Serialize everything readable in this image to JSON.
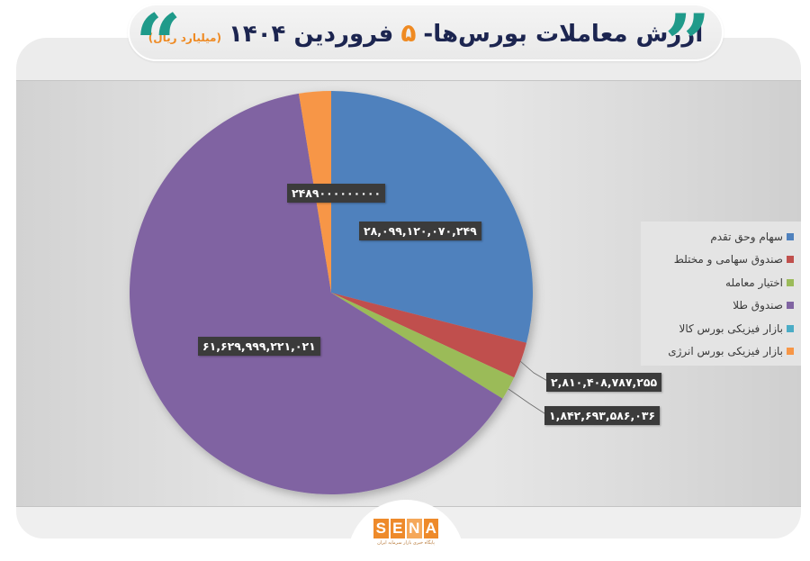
{
  "header": {
    "title_main": "ارزش معاملات بورس‌ها-",
    "title_day": "۵",
    "title_month_year": "فروردین ۱۴۰۴",
    "title_unit": "(میلیارد ریال)",
    "quote_open": "“",
    "quote_close": "”"
  },
  "footer": {
    "logo_letters": [
      "S",
      "E",
      "N",
      "A"
    ],
    "logo_tagline": "پایگاه خبری بازار سرمایه ایران"
  },
  "colors": {
    "title_text": "#1c2550",
    "accent_orange": "#ef8a22",
    "quote_teal": "#1f9a8a"
  },
  "chart_data": {
    "type": "pie",
    "title": "ارزش معاملات بورس‌ها- ۵ فروردین ۱۴۰۴ (میلیارد ریال)",
    "start_angle_deg": 0,
    "direction": "clockwise",
    "legend_position": "right",
    "categories": [
      "سهام  وحق تقدم",
      "صندوق سهامی و مختلط",
      "اختیار معامله",
      "صندوق طلا",
      "بازار فیزیکی بورس کالا",
      "بازار فیزیکی بورس انرژی"
    ],
    "values": [
      28099120070249,
      2810408787255,
      1842693586036,
      61629999221021,
      0,
      2489000000000
    ],
    "colors": [
      "#4f81bd",
      "#c0504d",
      "#9bbb59",
      "#8064a2",
      "#4bacc6",
      "#f79646"
    ],
    "data_labels": [
      "۲۸,۰۹۹,۱۲۰,۰۷۰,۲۴۹",
      "۲,۸۱۰,۴۰۸,۷۸۷,۲۵۵",
      "۱,۸۴۲,۶۹۳,۵۸۶,۰۳۶",
      "۶۱,۶۲۹,۹۹۹,۲۲۱,۰۲۱",
      "",
      "۲۴۸۹۰۰۰۰۰۰۰۰۰"
    ]
  }
}
